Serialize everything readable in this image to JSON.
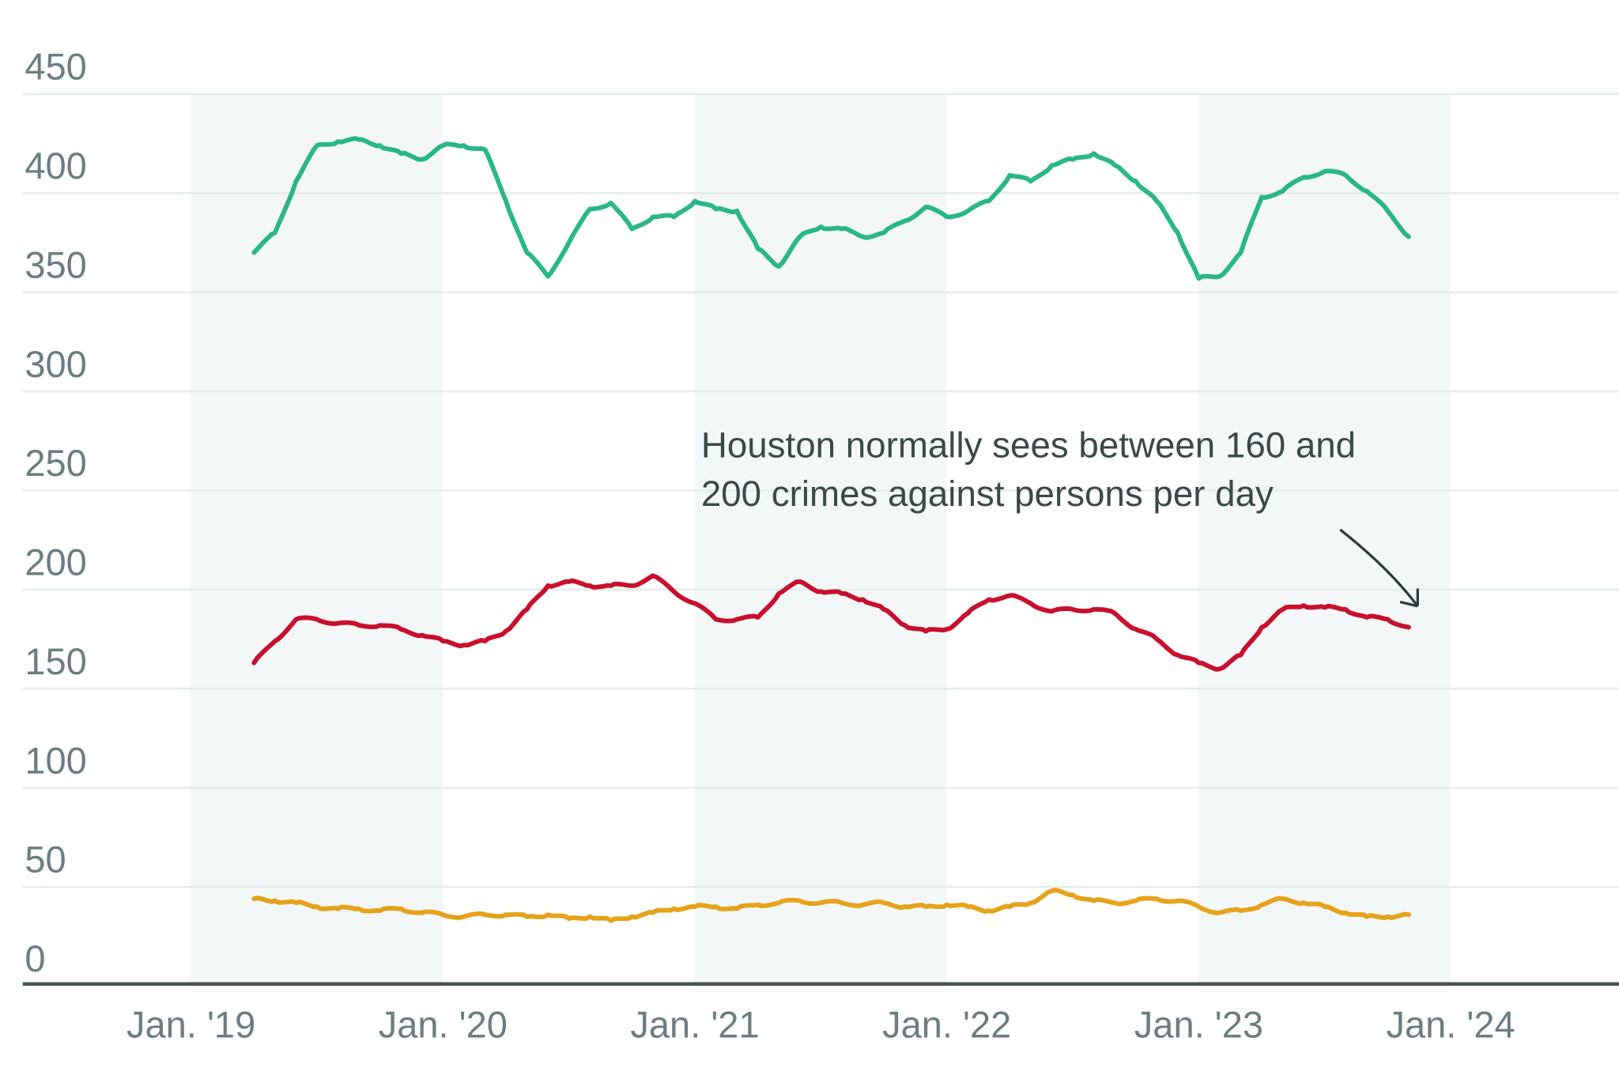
{
  "chart_data": {
    "type": "line",
    "title": "",
    "xlabel": "",
    "ylabel": "",
    "ylim": [
      0,
      450
    ],
    "yticks": [
      "0",
      "50",
      "100",
      "150",
      "200",
      "250",
      "300",
      "350",
      "400",
      "450"
    ],
    "xticks": [
      {
        "date": "2019-01",
        "label": "Jan. '19"
      },
      {
        "date": "2020-01",
        "label": "Jan. '20"
      },
      {
        "date": "2021-01",
        "label": "Jan. '21"
      },
      {
        "date": "2022-01",
        "label": "Jan. '22"
      },
      {
        "date": "2023-01",
        "label": "Jan. '23"
      },
      {
        "date": "2024-01",
        "label": "Jan. '24"
      }
    ],
    "shaded_years": [
      "2019",
      "2021",
      "2023"
    ],
    "grid": true,
    "x": [
      "2019-04",
      "2019-05",
      "2019-06",
      "2019-07",
      "2019-08",
      "2019-09",
      "2019-10",
      "2019-11",
      "2019-12",
      "2020-01",
      "2020-02",
      "2020-03",
      "2020-04",
      "2020-05",
      "2020-06",
      "2020-07",
      "2020-08",
      "2020-09",
      "2020-10",
      "2020-11",
      "2020-12",
      "2021-01",
      "2021-02",
      "2021-03",
      "2021-04",
      "2021-05",
      "2021-06",
      "2021-07",
      "2021-08",
      "2021-09",
      "2021-10",
      "2021-11",
      "2021-12",
      "2022-01",
      "2022-02",
      "2022-03",
      "2022-04",
      "2022-05",
      "2022-06",
      "2022-07",
      "2022-08",
      "2022-09",
      "2022-10",
      "2022-11",
      "2022-12",
      "2023-01",
      "2023-02",
      "2023-03",
      "2023-04",
      "2023-05",
      "2023-06",
      "2023-07",
      "2023-08",
      "2023-09",
      "2023-10",
      "2023-11"
    ],
    "series": [
      {
        "color": "#2bb68a",
        "values": [
          370,
          380,
          406,
          424,
          426,
          427,
          424,
          420,
          417,
          424,
          424,
          422,
          396,
          370,
          358,
          375,
          392,
          395,
          382,
          388,
          388,
          396,
          392,
          391,
          372,
          363,
          378,
          383,
          382,
          378,
          380,
          386,
          393,
          388,
          391,
          396,
          409,
          406,
          414,
          417,
          420,
          414,
          406,
          396,
          380,
          357,
          358,
          370,
          398,
          401,
          408,
          411,
          409,
          401,
          391,
          378
        ]
      },
      {
        "color": "#c8102e",
        "values": [
          163,
          174,
          185,
          185,
          183,
          182,
          182,
          180,
          177,
          174,
          172,
          174,
          179,
          190,
          202,
          204,
          202,
          202,
          202,
          207,
          199,
          193,
          185,
          185,
          186,
          198,
          204,
          199,
          198,
          195,
          190,
          182,
          179,
          180,
          188,
          195,
          197,
          193,
          189,
          190,
          190,
          188,
          180,
          175,
          167,
          163,
          160,
          167,
          181,
          190,
          192,
          191,
          190,
          186,
          185,
          181
        ]
      },
      {
        "color": "#e6a219",
        "values": [
          44,
          43,
          42,
          40,
          39,
          39,
          38,
          39,
          37,
          36,
          35,
          36,
          36,
          35,
          36,
          34,
          35,
          33,
          35,
          37,
          39,
          40,
          40,
          39,
          41,
          42,
          43,
          42,
          42,
          41,
          42,
          40,
          40,
          41,
          40,
          38,
          40,
          42,
          48,
          46,
          43,
          42,
          43,
          44,
          43,
          40,
          37,
          38,
          41,
          44,
          42,
          40,
          37,
          35,
          35,
          36
        ]
      }
    ],
    "annotation": {
      "lines": [
        "Houston normally sees between 160 and",
        "200 crimes against persons per day"
      ]
    }
  }
}
